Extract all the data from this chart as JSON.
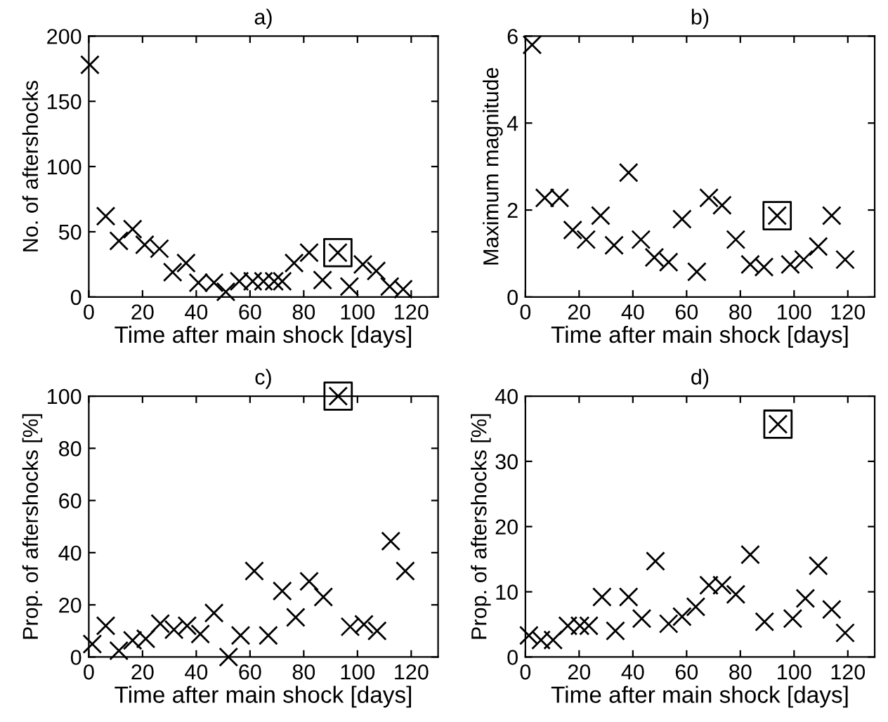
{
  "chart_data": [
    {
      "type": "scatter",
      "title": "a)",
      "xlabel": "Time after main shock [days]",
      "ylabel": "No. of aftershocks",
      "xlim": [
        0,
        130
      ],
      "xticks": [
        0,
        20,
        40,
        60,
        80,
        100,
        120
      ],
      "ylim": [
        0,
        200
      ],
      "yticks": [
        0,
        50,
        100,
        150,
        200
      ],
      "grid": false,
      "legend": false,
      "series": [
        {
          "color": "#000000",
          "marker": "cross",
          "x": [
            0.4,
            6.3,
            11.2,
            16.3,
            20.8,
            26.3,
            31.2,
            36.2,
            40.8,
            46.6,
            51,
            56,
            61,
            65,
            69,
            72,
            76.4,
            82,
            87,
            92.7,
            97,
            102,
            107,
            112,
            117
          ],
          "values": [
            178,
            62,
            43,
            52,
            40,
            37,
            19,
            26,
            11,
            11,
            4,
            12,
            12,
            12,
            12,
            12,
            26,
            34,
            13,
            34,
            8,
            25,
            20,
            8,
            6
          ]
        },
        {
          "color": "#000000",
          "x": [
            92.7
          ],
          "values": [
            34
          ]
        }
      ]
    },
    {
      "type": "scatter",
      "title": "b)",
      "xlabel": "Time after main shock [days]",
      "ylabel": "Maximum magnitude",
      "xlim": [
        0,
        130
      ],
      "xticks": [
        0,
        20,
        40,
        60,
        80,
        100,
        120
      ],
      "ylim": [
        0,
        6
      ],
      "yticks": [
        0,
        2,
        4,
        6
      ],
      "grid": false,
      "legend": false,
      "series": [
        {
          "color": "#000000",
          "marker": "cross",
          "x": [
            2.5,
            7.2,
            12.7,
            17.6,
            22.6,
            28,
            33,
            38.4,
            43,
            48,
            53.3,
            58.3,
            63.8,
            68.3,
            73.2,
            78.3,
            83.7,
            88.8,
            93.7,
            98.6,
            103.6,
            109,
            114,
            119
          ],
          "values": [
            5.8,
            2.28,
            2.28,
            1.54,
            1.32,
            1.87,
            1.19,
            2.86,
            1.32,
            0.91,
            0.8,
            1.79,
            0.58,
            2.28,
            2.11,
            1.32,
            0.75,
            0.69,
            1.87,
            0.75,
            0.86,
            1.16,
            1.87,
            0.86
          ]
        },
        {
          "color": "#000000",
          "x": [
            93.7
          ],
          "values": [
            1.87
          ]
        }
      ]
    },
    {
      "type": "scatter",
      "title": "c)",
      "xlabel": "Time after main shock [days]",
      "ylabel": "Prop. of aftershocks [%]",
      "xlim": [
        0,
        130
      ],
      "xticks": [
        0,
        20,
        40,
        60,
        80,
        100,
        120
      ],
      "ylim": [
        0,
        100
      ],
      "yticks": [
        0,
        20,
        40,
        60,
        80,
        100
      ],
      "grid": false,
      "legend": false,
      "series": [
        {
          "color": "#000000",
          "marker": "cross",
          "x": [
            1.3,
            6.3,
            11.2,
            16.3,
            21.2,
            26.6,
            31.7,
            36.6,
            41.5,
            46.6,
            52,
            56.5,
            61.6,
            66.8,
            72,
            77,
            82,
            87.3,
            92.8,
            97.3,
            102.4,
            107.3,
            112.4,
            117.8
          ],
          "values": [
            5,
            12,
            2.4,
            6.4,
            7,
            12.8,
            10.5,
            12,
            8.8,
            16.9,
            0,
            8.3,
            33,
            8.3,
            25.3,
            15.2,
            29,
            23,
            100,
            11.6,
            12.5,
            10,
            44.4,
            33
          ]
        },
        {
          "color": "#000000",
          "x": [
            92.8
          ],
          "values": [
            100
          ]
        }
      ]
    },
    {
      "type": "scatter",
      "title": "d)",
      "xlabel": "Time after main shock [days]",
      "ylabel": "Prop. of aftershocks [%]",
      "xlim": [
        0,
        130
      ],
      "xticks": [
        0,
        20,
        40,
        60,
        80,
        100,
        120
      ],
      "ylim": [
        0,
        40
      ],
      "yticks": [
        0,
        10,
        20,
        30,
        40
      ],
      "grid": false,
      "legend": false,
      "series": [
        {
          "color": "#000000",
          "marker": "cross",
          "x": [
            1.3,
            5.8,
            10.3,
            15.8,
            20.3,
            23.6,
            28.5,
            33.5,
            38.4,
            43.3,
            48.4,
            53.3,
            58.3,
            63.4,
            68.3,
            73.2,
            78.3,
            83.7,
            89,
            94,
            99.5,
            104.2,
            109,
            114,
            119
          ],
          "values": [
            3.3,
            2.6,
            2.6,
            4.8,
            4.8,
            4.8,
            9.2,
            4,
            9.2,
            5.9,
            14.7,
            5.1,
            6.2,
            7.7,
            11,
            11,
            9.6,
            15.7,
            5.4,
            35.7,
            5.9,
            9,
            14,
            7.3,
            3.7
          ]
        },
        {
          "color": "#000000",
          "x": [
            94
          ],
          "values": [
            35.7
          ]
        }
      ]
    }
  ]
}
